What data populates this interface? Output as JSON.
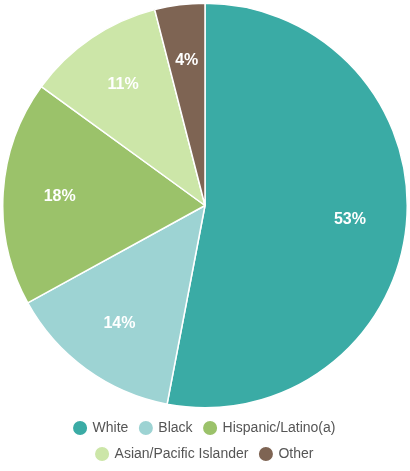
{
  "chart_data": {
    "type": "pie",
    "categories": [
      "White",
      "Black",
      "Hispanic/Latino(a)",
      "Asian/Pacific Islander",
      "Other"
    ],
    "values": [
      53,
      14,
      18,
      11,
      4
    ],
    "value_labels": [
      "53%",
      "14%",
      "18%",
      "11%",
      "4%"
    ],
    "colors": [
      "#3aaba5",
      "#9dd3d3",
      "#9bc26a",
      "#cce6a8",
      "#7e6453"
    ],
    "data_labels": true,
    "legend": "bottom"
  }
}
